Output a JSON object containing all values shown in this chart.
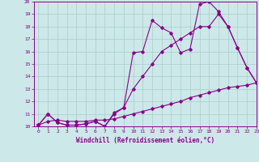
{
  "line1_x": [
    0,
    1,
    2,
    3,
    4,
    5,
    6,
    7,
    8,
    9,
    10,
    11,
    12,
    13,
    14,
    15,
    16,
    17,
    18,
    19,
    20,
    21,
    22,
    23
  ],
  "line1_y": [
    10.1,
    11.0,
    10.3,
    10.1,
    10.1,
    10.2,
    10.4,
    10.0,
    11.1,
    11.5,
    15.9,
    16.0,
    18.5,
    17.9,
    17.5,
    15.9,
    16.2,
    19.8,
    20.0,
    19.2,
    18.0,
    16.3,
    14.7,
    13.5
  ],
  "line2_x": [
    0,
    1,
    2,
    3,
    4,
    5,
    6,
    7,
    8,
    9,
    10,
    11,
    12,
    13,
    14,
    15,
    16,
    17,
    18,
    19,
    20,
    21,
    22,
    23
  ],
  "line2_y": [
    10.1,
    11.0,
    10.3,
    10.1,
    10.1,
    10.2,
    10.4,
    10.0,
    11.0,
    11.5,
    13.0,
    14.0,
    15.0,
    16.0,
    16.5,
    17.0,
    17.5,
    18.0,
    18.0,
    19.0,
    18.0,
    16.3,
    14.7,
    13.5
  ],
  "line3_x": [
    0,
    1,
    2,
    3,
    4,
    5,
    6,
    7,
    8,
    9,
    10,
    11,
    12,
    13,
    14,
    15,
    16,
    17,
    18,
    19,
    20,
    21,
    22,
    23
  ],
  "line3_y": [
    10.1,
    10.4,
    10.5,
    10.4,
    10.4,
    10.4,
    10.5,
    10.5,
    10.6,
    10.8,
    11.0,
    11.2,
    11.4,
    11.6,
    11.8,
    12.0,
    12.3,
    12.5,
    12.7,
    12.9,
    13.1,
    13.2,
    13.3,
    13.5
  ],
  "line_color": "#880088",
  "bg_color": "#cce8e8",
  "grid_color": "#aacccc",
  "xlabel": "Windchill (Refroidissement éolien,°C)",
  "xlim": [
    -0.5,
    23
  ],
  "ylim": [
    10,
    20
  ],
  "xticks": [
    0,
    1,
    2,
    3,
    4,
    5,
    6,
    7,
    8,
    9,
    10,
    11,
    12,
    13,
    14,
    15,
    16,
    17,
    18,
    19,
    20,
    21,
    22,
    23
  ],
  "yticks": [
    10,
    11,
    12,
    13,
    14,
    15,
    16,
    17,
    18,
    19,
    20
  ],
  "marker": "D",
  "markersize": 1.8,
  "linewidth": 0.8
}
